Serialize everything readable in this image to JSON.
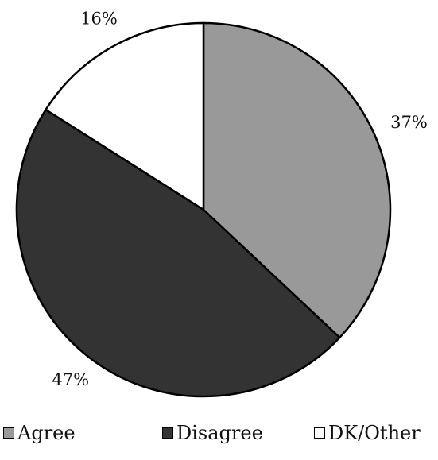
{
  "chart_data": {
    "type": "pie",
    "categories": [
      "Agree",
      "Disagree",
      "DK/Other"
    ],
    "values": [
      37,
      47,
      16
    ],
    "labels": [
      "37%",
      "47%",
      "16%"
    ],
    "colors": [
      "#999999",
      "#333333",
      "#ffffff"
    ],
    "start_angle": "12 o'clock",
    "direction": "clockwise",
    "legend_position": "bottom"
  },
  "legend": {
    "items": [
      {
        "label": "Agree",
        "color": "#999999"
      },
      {
        "label": "Disagree",
        "color": "#333333"
      },
      {
        "label": "DK/Other",
        "color": "#ffffff"
      }
    ]
  }
}
